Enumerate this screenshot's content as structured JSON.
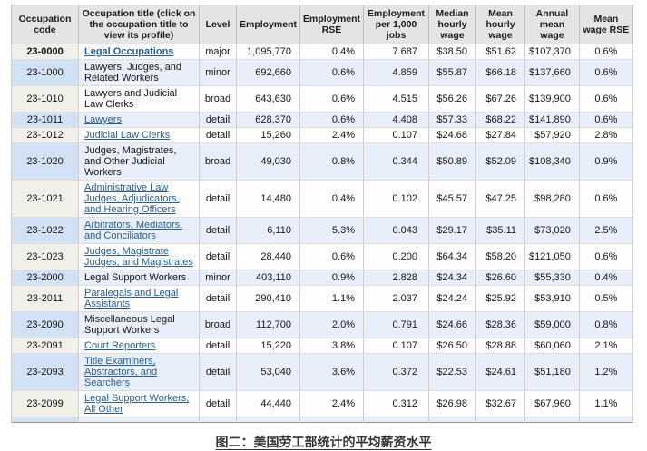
{
  "caption": "图二：美国劳工部统计的平均薪资水平",
  "colors": {
    "header_bg": "#e4e4e4",
    "row_blue": "#e9effa",
    "row_blue_code": "#d2e1f5",
    "row_white": "#fdfdfd",
    "row_white_code": "#f0efe8",
    "link_blue": "#2a5d8f",
    "table_border": "#919191"
  },
  "table": {
    "headers": [
      "Occupation code",
      "Occupation title (click on the occupation title to view its profile)",
      "Level",
      "Employment",
      "Employment RSE",
      "Employment per 1,000 jobs",
      "Median hourly wage",
      "Mean hourly wage",
      "Annual mean wage",
      "Mean wage RSE"
    ],
    "rows": [
      {
        "code": "23-0000",
        "title": "Legal Occupations",
        "is_link": true,
        "bold": true,
        "level": "major",
        "employment": "1,095,770",
        "employment_rse": "0.4%",
        "per_1000": "7.687",
        "median_hourly": "$38.50",
        "mean_hourly": "$51.62",
        "annual_mean": "$107,370",
        "mean_wage_rse": "0.6%",
        "shade": "white"
      },
      {
        "code": "23-1000",
        "title": "Lawyers, Judges, and Related Workers",
        "is_link": false,
        "bold": false,
        "level": "minor",
        "employment": "692,660",
        "employment_rse": "0.6%",
        "per_1000": "4.859",
        "median_hourly": "$55.87",
        "mean_hourly": "$66.18",
        "annual_mean": "$137,660",
        "mean_wage_rse": "0.6%",
        "shade": "blue"
      },
      {
        "code": "23-1010",
        "title": "Lawyers and Judicial Law Clerks",
        "is_link": false,
        "bold": false,
        "level": "broad",
        "employment": "643,630",
        "employment_rse": "0.6%",
        "per_1000": "4.515",
        "median_hourly": "$56.26",
        "mean_hourly": "$67.26",
        "annual_mean": "$139,900",
        "mean_wage_rse": "0.6%",
        "shade": "white"
      },
      {
        "code": "23-1011",
        "title": "Lawyers",
        "is_link": true,
        "bold": false,
        "level": "detail",
        "employment": "628,370",
        "employment_rse": "0.6%",
        "per_1000": "4.408",
        "median_hourly": "$57.33",
        "mean_hourly": "$68.22",
        "annual_mean": "$141,890",
        "mean_wage_rse": "0.6%",
        "shade": "blue"
      },
      {
        "code": "23-1012",
        "title": "Judicial Law Clerks",
        "is_link": true,
        "bold": false,
        "level": "detail",
        "employment": "15,260",
        "employment_rse": "2.4%",
        "per_1000": "0.107",
        "median_hourly": "$24.68",
        "mean_hourly": "$27.84",
        "annual_mean": "$57,920",
        "mean_wage_rse": "2.8%",
        "shade": "white"
      },
      {
        "code": "23-1020",
        "title": "Judges, Magistrates, and Other Judicial Workers",
        "is_link": false,
        "bold": false,
        "level": "broad",
        "employment": "49,030",
        "employment_rse": "0.8%",
        "per_1000": "0.344",
        "median_hourly": "$50.89",
        "mean_hourly": "$52.09",
        "annual_mean": "$108,340",
        "mean_wage_rse": "0.9%",
        "shade": "blue"
      },
      {
        "code": "23-1021",
        "title": "Administrative Law Judges, Adjudicators, and Hearing Officers",
        "is_link": true,
        "bold": false,
        "level": "detail",
        "employment": "14,480",
        "employment_rse": "0.4%",
        "per_1000": "0.102",
        "median_hourly": "$45.57",
        "mean_hourly": "$47.25",
        "annual_mean": "$98,280",
        "mean_wage_rse": "0.6%",
        "shade": "white"
      },
      {
        "code": "23-1022",
        "title": "Arbitrators, Mediators, and Conciliators",
        "is_link": true,
        "bold": false,
        "level": "detail",
        "employment": "6,110",
        "employment_rse": "5.3%",
        "per_1000": "0.043",
        "median_hourly": "$29.17",
        "mean_hourly": "$35.11",
        "annual_mean": "$73,020",
        "mean_wage_rse": "2.5%",
        "shade": "blue"
      },
      {
        "code": "23-1023",
        "title": "Judges, Magistrate Judges, and Magistrates",
        "is_link": true,
        "bold": false,
        "level": "detail",
        "employment": "28,440",
        "employment_rse": "0.6%",
        "per_1000": "0.200",
        "median_hourly": "$64.34",
        "mean_hourly": "$58.20",
        "annual_mean": "$121,050",
        "mean_wage_rse": "0.6%",
        "shade": "white"
      },
      {
        "code": "23-2000",
        "title": "Legal Support Workers",
        "is_link": false,
        "bold": false,
        "level": "minor",
        "employment": "403,110",
        "employment_rse": "0.9%",
        "per_1000": "2.828",
        "median_hourly": "$24.34",
        "mean_hourly": "$26.60",
        "annual_mean": "$55,330",
        "mean_wage_rse": "0.4%",
        "shade": "blue"
      },
      {
        "code": "23-2011",
        "title": "Paralegals and Legal Assistants",
        "is_link": true,
        "bold": false,
        "level": "detail",
        "employment": "290,410",
        "employment_rse": "1.1%",
        "per_1000": "2.037",
        "median_hourly": "$24.24",
        "mean_hourly": "$25.92",
        "annual_mean": "$53,910",
        "mean_wage_rse": "0.5%",
        "shade": "white"
      },
      {
        "code": "23-2090",
        "title": "Miscellaneous Legal Support Workers",
        "is_link": false,
        "bold": false,
        "level": "broad",
        "employment": "112,700",
        "employment_rse": "2.0%",
        "per_1000": "0.791",
        "median_hourly": "$24.66",
        "mean_hourly": "$28.36",
        "annual_mean": "$59,000",
        "mean_wage_rse": "0.8%",
        "shade": "blue"
      },
      {
        "code": "23-2091",
        "title": "Court Reporters",
        "is_link": true,
        "bold": false,
        "level": "detail",
        "employment": "15,220",
        "employment_rse": "3.8%",
        "per_1000": "0.107",
        "median_hourly": "$26.50",
        "mean_hourly": "$28.88",
        "annual_mean": "$60,060",
        "mean_wage_rse": "2.1%",
        "shade": "white"
      },
      {
        "code": "23-2093",
        "title": "Title Examiners, Abstractors, and Searchers",
        "is_link": true,
        "bold": false,
        "level": "detail",
        "employment": "53,040",
        "employment_rse": "3.6%",
        "per_1000": "0.372",
        "median_hourly": "$22.53",
        "mean_hourly": "$24.61",
        "annual_mean": "$51,180",
        "mean_wage_rse": "1.2%",
        "shade": "blue"
      },
      {
        "code": "23-2099",
        "title": "Legal Support Workers, All Other",
        "is_link": true,
        "bold": false,
        "level": "detail",
        "employment": "44,440",
        "employment_rse": "2.4%",
        "per_1000": "0.312",
        "median_hourly": "$26.98",
        "mean_hourly": "$32.67",
        "annual_mean": "$67,960",
        "mean_wage_rse": "1.1%",
        "shade": "white"
      }
    ]
  }
}
